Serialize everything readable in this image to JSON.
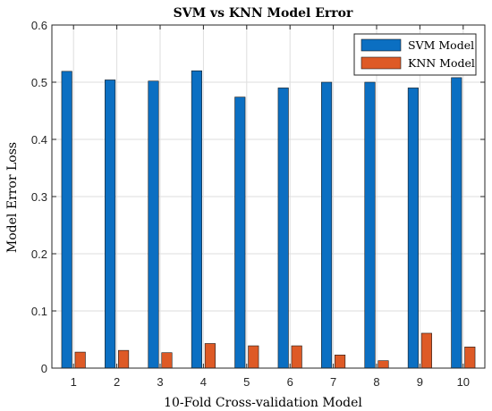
{
  "chart_data": {
    "type": "bar",
    "title": "SVM vs KNN Model Error",
    "xlabel": "10-Fold Cross-validation Model",
    "ylabel": "Model Error Loss",
    "categories": [
      "1",
      "2",
      "3",
      "4",
      "5",
      "6",
      "7",
      "8",
      "9",
      "10"
    ],
    "ylim": [
      0,
      0.6
    ],
    "yticks": [
      "0",
      "0.1",
      "0.2",
      "0.3",
      "0.4",
      "0.5",
      "0.6"
    ],
    "ytick_values": [
      0,
      0.1,
      0.2,
      0.3,
      0.4,
      0.5,
      0.6
    ],
    "grid": true,
    "legend_position": "top-right",
    "series": [
      {
        "name": "SVM Model",
        "color": "#0b6fc2",
        "values": [
          0.519,
          0.504,
          0.502,
          0.52,
          0.474,
          0.49,
          0.5,
          0.5,
          0.49,
          0.508
        ]
      },
      {
        "name": "KNN Model",
        "color": "#de5a26",
        "values": [
          0.028,
          0.031,
          0.027,
          0.043,
          0.039,
          0.039,
          0.023,
          0.013,
          0.061,
          0.037
        ]
      }
    ]
  }
}
